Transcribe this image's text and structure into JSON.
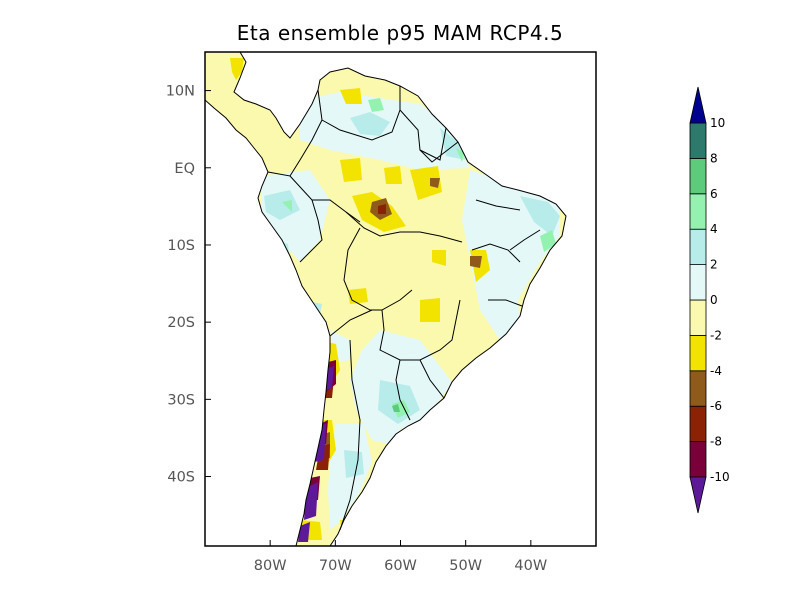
{
  "map": {
    "title": "Eta ensemble p95 MAM RCP4.5",
    "lat_labels": [
      {
        "label": "10N",
        "lat": 10
      },
      {
        "label": "EQ",
        "lat": 0
      },
      {
        "label": "10S",
        "lat": -10
      },
      {
        "label": "20S",
        "lat": -20
      },
      {
        "label": "30S",
        "lat": -30
      },
      {
        "label": "40S",
        "lat": -40
      }
    ],
    "lon_labels": [
      {
        "label": "80W",
        "lon": -80
      },
      {
        "label": "70W",
        "lon": -70
      },
      {
        "label": "60W",
        "lon": -60
      },
      {
        "label": "50W",
        "lon": -50
      },
      {
        "label": "40W",
        "lon": -40
      }
    ],
    "extent": {
      "lon_min": -90,
      "lon_max": -30,
      "lat_min": -49,
      "lat_max": 15
    }
  },
  "colorbar": {
    "levels": [
      "-10",
      "-8",
      "-6",
      "-4",
      "-2",
      "0",
      "2",
      "4",
      "6",
      "8",
      "10"
    ],
    "bins": [
      {
        "from": -10,
        "to": -8,
        "color": "#7a0039"
      },
      {
        "from": -8,
        "to": -6,
        "color": "#8b2206"
      },
      {
        "from": -6,
        "to": -4,
        "color": "#8f5b1b"
      },
      {
        "from": -4,
        "to": -2,
        "color": "#f2e400"
      },
      {
        "from": -2,
        "to": 0,
        "color": "#fbf9ad"
      },
      {
        "from": 0,
        "to": 2,
        "color": "#e4f8f8"
      },
      {
        "from": 2,
        "to": 4,
        "color": "#b7ecea"
      },
      {
        "from": 4,
        "to": 6,
        "color": "#94f2b1"
      },
      {
        "from": 6,
        "to": 8,
        "color": "#5ccc7c"
      },
      {
        "from": 8,
        "to": 10,
        "color": "#2b7a6c"
      }
    ],
    "under_color": "#5c1a98",
    "over_color": "#00008f"
  }
}
